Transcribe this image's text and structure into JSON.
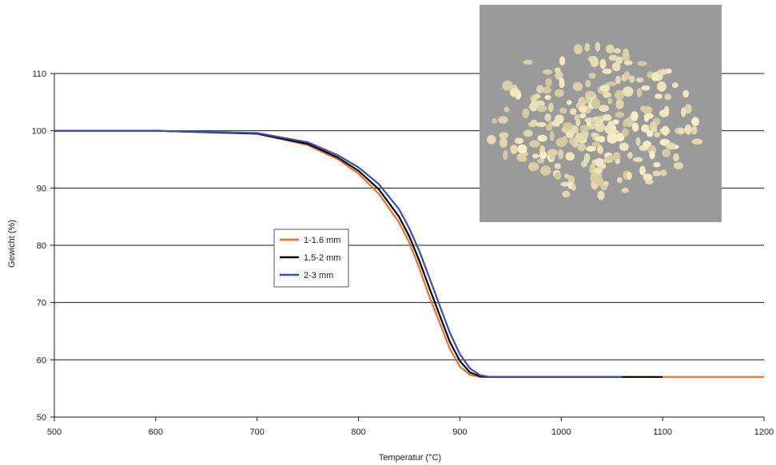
{
  "chart_data": {
    "type": "line",
    "xlabel": "Temperatur (°C)",
    "ylabel": "Gewicht (%)",
    "xlim": [
      500,
      1200
    ],
    "ylim": [
      50,
      110
    ],
    "xticks": [
      500,
      600,
      700,
      800,
      900,
      1000,
      1100,
      1200
    ],
    "yticks": [
      50,
      60,
      70,
      80,
      90,
      100,
      110
    ],
    "grid": "horizontal",
    "legend_position": "center-left",
    "series": [
      {
        "name": "1-1.6 mm",
        "color": "#ff6a2a",
        "x": [
          500,
          600,
          700,
          750,
          780,
          800,
          820,
          840,
          850,
          860,
          870,
          880,
          890,
          900,
          910,
          920,
          930,
          1000,
          1100,
          1200
        ],
        "y": [
          100,
          100,
          99.5,
          97.5,
          95,
          92.5,
          89,
          84,
          80.5,
          76,
          71,
          66.5,
          62,
          58.8,
          57.4,
          57,
          57,
          57,
          57,
          57
        ]
      },
      {
        "name": "1.5-2 mm",
        "color": "#000000",
        "x": [
          500,
          600,
          700,
          750,
          780,
          800,
          820,
          840,
          850,
          860,
          870,
          880,
          890,
          900,
          910,
          920,
          930,
          1000,
          1100
        ],
        "y": [
          100,
          100,
          99.5,
          97.7,
          95.3,
          93,
          89.8,
          85,
          81.6,
          77.3,
          72.5,
          67.8,
          63.2,
          59.8,
          57.8,
          57.1,
          57,
          57,
          57
        ]
      },
      {
        "name": "2-3 mm",
        "color": "#3a4fb5",
        "x": [
          500,
          600,
          700,
          750,
          780,
          800,
          820,
          840,
          850,
          860,
          870,
          880,
          890,
          900,
          910,
          920,
          930,
          1000,
          1060
        ],
        "y": [
          100,
          100,
          99.6,
          98,
          95.7,
          93.6,
          90.7,
          86.3,
          83,
          79,
          74.3,
          69.5,
          64.8,
          61,
          58.5,
          57.3,
          57,
          57,
          57
        ]
      }
    ]
  },
  "photo_icon": "granules-photo"
}
